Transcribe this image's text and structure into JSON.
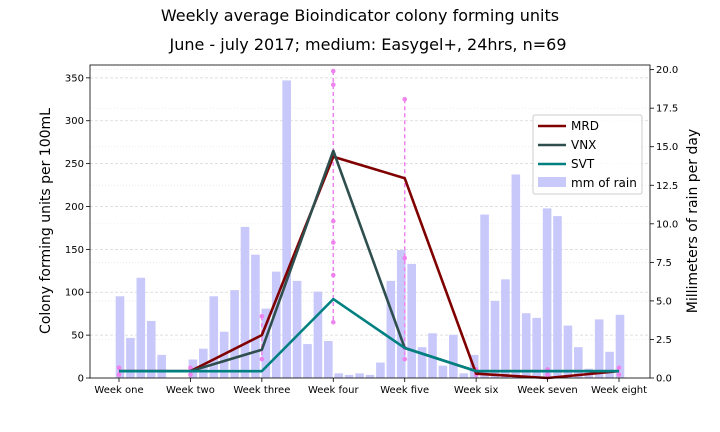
{
  "title": "Weekly average Bioindicator colony forming units",
  "subtitle": "June - july 2017; medium: Easygel+, 24hrs, n=69",
  "chart_data": {
    "type": "line",
    "categories": [
      "Week one",
      "Week two",
      "Week three",
      "Week four",
      "Week five",
      "Week six",
      "Week seven",
      "Week eight"
    ],
    "ylabel_left": "Colony forming units per 100mL",
    "ylabel_right": "Millimeters of rain per day",
    "ylim_left": [
      0,
      365
    ],
    "ylim_right": [
      0,
      20.3
    ],
    "yticks_left": [
      "0",
      "50",
      "100",
      "150",
      "200",
      "250",
      "300",
      "350"
    ],
    "yticks_right": [
      "0.0",
      "2.5",
      "5.0",
      "7.5",
      "10.0",
      "12.5",
      "15.0",
      "17.5",
      "20.0"
    ],
    "grid": true,
    "legend_position": "upper-right",
    "series": [
      {
        "name": "MRD",
        "color": "#800000",
        "values": [
          8,
          8,
          50,
          258,
          233,
          5,
          0,
          8
        ]
      },
      {
        "name": "VNX",
        "color": "#2f4f4f",
        "values": [
          8,
          8,
          33,
          265,
          35,
          8,
          8,
          8
        ]
      },
      {
        "name": "SVT",
        "color": "#008080",
        "values": [
          8,
          8,
          8,
          92,
          35,
          8,
          8,
          8
        ]
      }
    ],
    "error_bars": {
      "color": "#ee82ee",
      "points": [
        {
          "x": 0,
          "low": 4,
          "high": 12
        },
        {
          "x": 1,
          "low": 4,
          "high": 12
        },
        {
          "x": 2,
          "low": 22,
          "high": 72
        },
        {
          "x": 3,
          "low": 65,
          "high": 358,
          "markers": [
            65,
            120,
            158,
            183,
            342,
            358
          ]
        },
        {
          "x": 4,
          "low": 22,
          "high": 325,
          "markers": [
            22,
            35,
            140,
            325
          ]
        },
        {
          "x": 5,
          "low": 4,
          "high": 10
        },
        {
          "x": 6,
          "low": 4,
          "high": 10
        },
        {
          "x": 7,
          "low": 4,
          "high": 12
        }
      ]
    },
    "rain": {
      "name": "mm of rain",
      "color": "#c8c8fa",
      "values": [
        5.3,
        2.6,
        6.5,
        3.7,
        1.5,
        0.0,
        0.0,
        1.2,
        1.9,
        5.3,
        3.0,
        5.7,
        9.8,
        8.0,
        4.5,
        6.9,
        19.3,
        6.3,
        2.2,
        5.6,
        2.4,
        0.3,
        0.2,
        0.3,
        0.2,
        1.0,
        6.3,
        8.3,
        7.4,
        2.0,
        2.9,
        0.8,
        2.8,
        0.3,
        1.5,
        10.6,
        5.0,
        6.4,
        13.2,
        4.2,
        3.9,
        11.0,
        10.5,
        3.4,
        2.0,
        0.6,
        3.8,
        1.7,
        4.1
      ]
    }
  }
}
